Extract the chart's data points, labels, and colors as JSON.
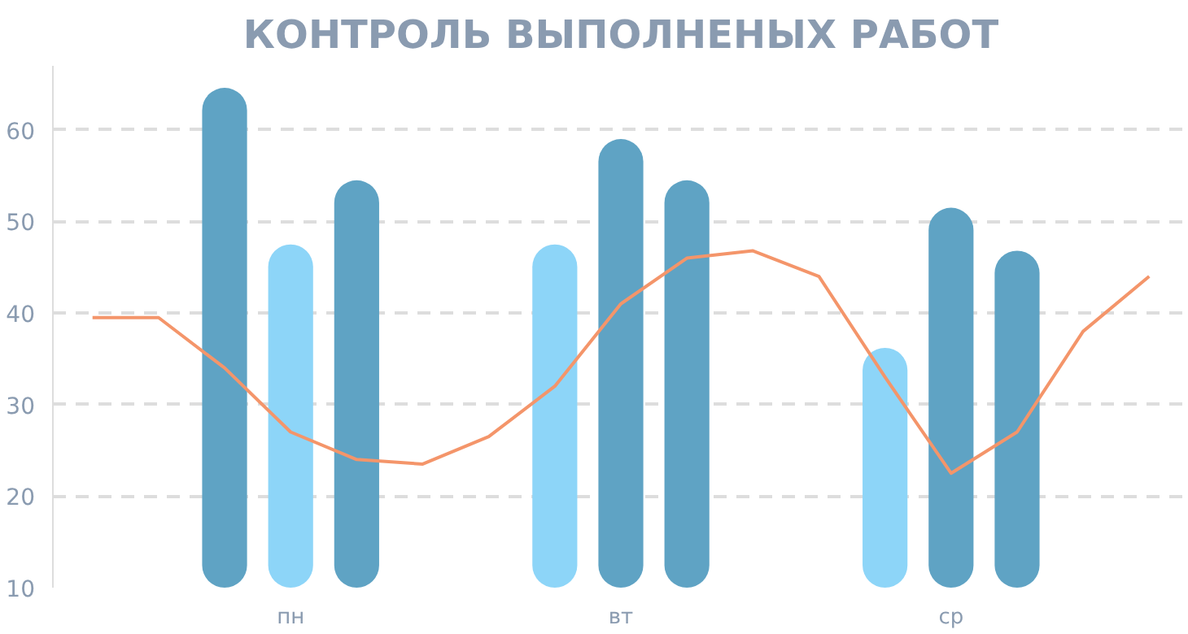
{
  "chart_data": {
    "type": "bar",
    "title": "КОНТРОЛЬ ВЫПОЛНЕНЫХ РАБОТ",
    "categories": [
      null,
      null,
      null,
      "пн",
      null,
      null,
      null,
      null,
      "вт",
      null,
      null,
      null,
      null,
      "ср",
      null,
      null,
      null
    ],
    "series": [
      {
        "values": [
          null,
          null,
          54.6,
          null,
          null,
          null,
          null,
          37.5,
          null,
          null,
          null,
          null,
          26.2,
          null,
          null,
          null,
          null
        ],
        "base": [
          null,
          null,
          10,
          null,
          null,
          null,
          null,
          10,
          null,
          null,
          null,
          null,
          10,
          null,
          null,
          null,
          null
        ],
        "colors": [
          null,
          null,
          "#5fa3c4",
          null,
          null,
          null,
          null,
          "#8dd5f8",
          null,
          null,
          null,
          null,
          "#8dd5f8",
          null,
          null,
          null,
          null
        ]
      },
      {
        "values": [
          null,
          null,
          null,
          37.5,
          null,
          null,
          null,
          null,
          49,
          null,
          null,
          null,
          null,
          41.5,
          null,
          null,
          null
        ],
        "base": [
          null,
          null,
          null,
          10,
          null,
          null,
          null,
          null,
          10,
          null,
          null,
          null,
          null,
          10,
          null,
          null,
          null
        ],
        "colors": [
          null,
          null,
          null,
          "#8dd5f8",
          null,
          null,
          null,
          null,
          "#5fa3c4",
          null,
          null,
          null,
          null,
          "#5fa3c4",
          null,
          null,
          null
        ]
      },
      {
        "values": [
          null,
          null,
          null,
          null,
          44.5,
          null,
          null,
          null,
          null,
          44.5,
          null,
          null,
          null,
          null,
          36.8,
          null,
          null
        ],
        "base": [
          null,
          null,
          null,
          null,
          10,
          null,
          null,
          null,
          null,
          10,
          null,
          null,
          null,
          null,
          10,
          null,
          null
        ],
        "colors": [
          null,
          null,
          null,
          null,
          "#5fa3c4",
          null,
          null,
          null,
          null,
          "#5fa3c4",
          null,
          null,
          null,
          null,
          "#5fa3c4",
          null,
          null
        ]
      },
      {
        "type": "line",
        "color": "#f4956a",
        "values": [
          39.5,
          39.5,
          34,
          27,
          24,
          23.5,
          26.5,
          32,
          41,
          46,
          46.8,
          44,
          33,
          22.5,
          27,
          38,
          44
        ]
      }
    ],
    "ylim": [
      10,
      67
    ],
    "yticks": [
      10,
      20,
      30,
      40,
      50,
      60
    ],
    "grid": "y",
    "line_style": "solid",
    "marker": "none"
  }
}
